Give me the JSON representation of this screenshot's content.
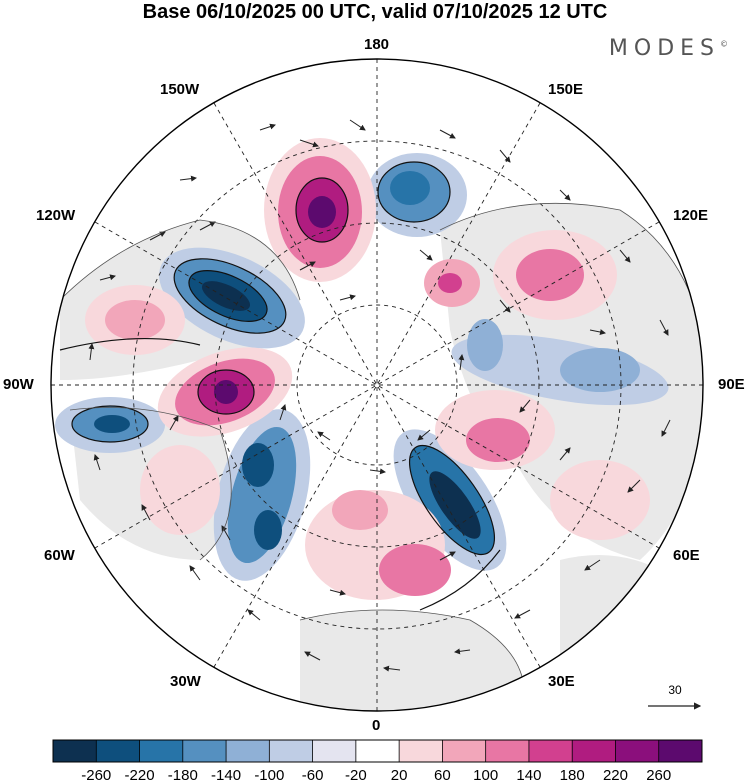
{
  "title": "Base 06/10/2025 00 UTC, valid 07/10/2025 12 UTC",
  "brand": "MODES",
  "brand_mark": "©",
  "map": {
    "projection": "north-polar-stereographic",
    "longitude_labels": {
      "top": "180",
      "bottom": "0",
      "left": "90W",
      "right": "90E",
      "upper_left_1": "150W",
      "upper_left_2": "120W",
      "lower_left_1": "60W",
      "lower_left_2": "30W",
      "upper_right_1": "150E",
      "upper_right_2": "120E",
      "lower_right_1": "60E",
      "lower_right_2": "30E"
    },
    "reference_vector": {
      "value": "30",
      "icon": "arrow-right-icon"
    }
  },
  "colorbar": {
    "tick_labels": [
      "-260",
      "-220",
      "-180",
      "-140",
      "-100",
      "-60",
      "-20",
      "20",
      "60",
      "100",
      "140",
      "180",
      "220",
      "260"
    ],
    "colors": [
      "#0d3050",
      "#0e4f7d",
      "#2774a8",
      "#5590c0",
      "#8fb0d6",
      "#bfcde5",
      "#e4e4f0",
      "#ffffff",
      "#f8d8dc",
      "#f2a6ba",
      "#e876a4",
      "#d2408f",
      "#b01c80",
      "#8b0f7c",
      "#5c0a6e"
    ]
  }
}
